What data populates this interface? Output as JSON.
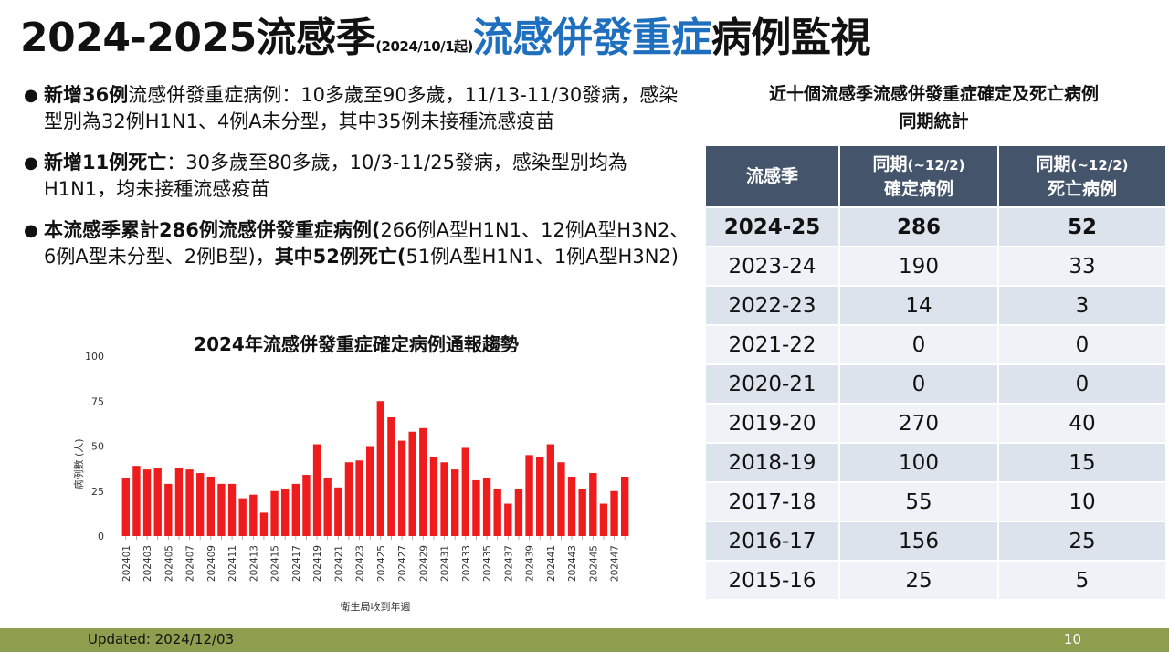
{
  "slide": {
    "title_main": "2024-2025流感季",
    "title_small": "(2024/10/1起)",
    "title_blue": "流感併發重症",
    "title_end": "病例監視",
    "footer_updated": "Updated: 2024/12/03",
    "page_number": "10",
    "colors": {
      "title_blue": "#1f6fbf",
      "table_header": "#44546a",
      "bar": "#ee1c1c",
      "footer": "#8d9f4f"
    }
  },
  "bullets": [
    {
      "bold1": "新增36例",
      "text1": "流感併發重症病例：10多歲至90多歲，11/13-11/30發病，感染型別為32例H1N1、4例A未分型，其中35例未接種流感疫苗",
      "bold2": "",
      "text2": ""
    },
    {
      "bold1": "新增11例死亡",
      "text1": "：30多歲至80多歲，10/3-11/25發病，感染型別均為H1N1，均未接種流感疫苗",
      "bold2": "",
      "text2": ""
    },
    {
      "bold1": "本流感季累計286例流感併發重症病例(",
      "text1": "266例A型H1N1、12例A型H3N2、6例A型未分型、2例B型)，",
      "bold2": "其中52例死亡(",
      "text2": "51例A型H1N1、1例A型H3N2)"
    }
  ],
  "table": {
    "title_line1": "近十個流感季流感併發重症確定及死亡病例",
    "title_line2": "同期統計",
    "headers": {
      "season": "流感季",
      "confirmed_l1": "同期",
      "confirmed_small": "(~12/2)",
      "confirmed_l2": "確定病例",
      "deaths_l1": "同期",
      "deaths_small": "(~12/2)",
      "deaths_l2": "死亡病例"
    },
    "rows": [
      {
        "season": "2024-25",
        "confirmed": "286",
        "deaths": "52"
      },
      {
        "season": "2023-24",
        "confirmed": "190",
        "deaths": "33"
      },
      {
        "season": "2022-23",
        "confirmed": "14",
        "deaths": "3"
      },
      {
        "season": "2021-22",
        "confirmed": "0",
        "deaths": "0"
      },
      {
        "season": "2020-21",
        "confirmed": "0",
        "deaths": "0"
      },
      {
        "season": "2019-20",
        "confirmed": "270",
        "deaths": "40"
      },
      {
        "season": "2018-19",
        "confirmed": "100",
        "deaths": "15"
      },
      {
        "season": "2017-18",
        "confirmed": "55",
        "deaths": "10"
      },
      {
        "season": "2016-17",
        "confirmed": "156",
        "deaths": "25"
      },
      {
        "season": "2015-16",
        "confirmed": "25",
        "deaths": "5"
      }
    ]
  },
  "chart_data": {
    "type": "bar",
    "title": "2024年流感併發重症確定病例通報趨勢",
    "xlabel": "衛生局收到年週",
    "ylabel": "病例數 (人)",
    "ylim": [
      0,
      100
    ],
    "yticks": [
      0,
      25,
      50,
      75,
      100
    ],
    "grid": false,
    "categories": [
      "202401",
      "202402",
      "202403",
      "202404",
      "202405",
      "202406",
      "202407",
      "202408",
      "202409",
      "202410",
      "202411",
      "202412",
      "202413",
      "202414",
      "202415",
      "202416",
      "202417",
      "202418",
      "202419",
      "202420",
      "202421",
      "202422",
      "202423",
      "202424",
      "202425",
      "202426",
      "202427",
      "202428",
      "202429",
      "202430",
      "202431",
      "202432",
      "202433",
      "202434",
      "202435",
      "202436",
      "202437",
      "202438",
      "202439",
      "202440",
      "202441",
      "202442",
      "202443",
      "202444",
      "202445",
      "202446",
      "202447",
      "202448"
    ],
    "visible_tick_labels": [
      "202401",
      "202403",
      "202405",
      "202407",
      "202409",
      "202411",
      "202413",
      "202415",
      "202417",
      "202419",
      "202421",
      "202423",
      "202425",
      "202427",
      "202429",
      "202431",
      "202433",
      "202435",
      "202437",
      "202439",
      "202441",
      "202443",
      "202445",
      "202447"
    ],
    "values": [
      32,
      39,
      37,
      38,
      29,
      38,
      37,
      35,
      33,
      29,
      29,
      21,
      23,
      13,
      25,
      26,
      29,
      34,
      51,
      32,
      27,
      41,
      42,
      50,
      75,
      66,
      53,
      58,
      60,
      44,
      41,
      37,
      49,
      31,
      32,
      26,
      18,
      26,
      45,
      44,
      51,
      41,
      33,
      26,
      35,
      18,
      25,
      33
    ]
  }
}
